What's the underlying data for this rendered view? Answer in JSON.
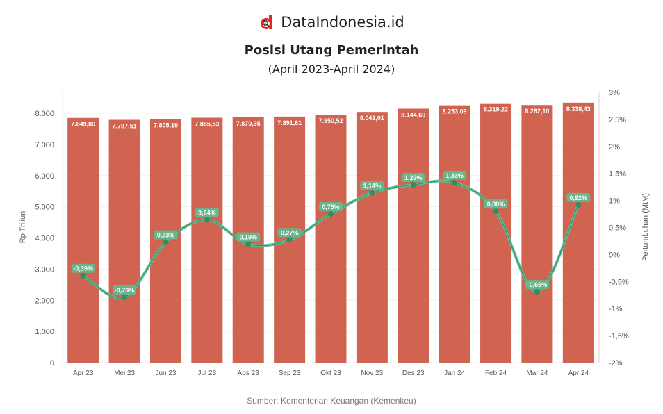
{
  "brand": {
    "name": "DataIndonesia.id",
    "icon": "dataindonesia-logo-icon",
    "color": "#e02b20"
  },
  "title": "Posisi Utang Pemerintah",
  "subtitle": "(April 2023-April 2024)",
  "source": "Sumber: Kementerian Keuangan (Kemenkeu)",
  "colors": {
    "bar": "#d06450",
    "line": "#5bbf96",
    "marker": "#2e8f63"
  },
  "chart_data": {
    "type": "bar",
    "title": "Posisi Utang Pemerintah",
    "subtitle": "(April 2023-April 2024)",
    "categories": [
      "Apr 23",
      "Mei 23",
      "Jun 23",
      "Jul 23",
      "Ags 23",
      "Sep 23",
      "Okt 23",
      "Nov 23",
      "Des 23",
      "Jan 24",
      "Feb 24",
      "Mar 24",
      "Apr 24"
    ],
    "series": [
      {
        "name": "Posisi Utang (Rp Triliun)",
        "type": "bar",
        "axis": "left",
        "values": [
          7849.89,
          7787.51,
          7805.19,
          7855.53,
          7870.35,
          7891.61,
          7950.52,
          8041.01,
          8144.69,
          8253.09,
          8319.22,
          8262.1,
          8338.43
        ]
      },
      {
        "name": "Pertumbuhan (MtM)",
        "type": "line",
        "axis": "right",
        "unit": "%",
        "values": [
          -0.39,
          -0.79,
          0.23,
          0.64,
          0.19,
          0.27,
          0.75,
          1.14,
          1.29,
          1.33,
          0.8,
          -0.69,
          0.92
        ]
      }
    ],
    "ylabel": "Rp Triliun",
    "ylabel_right": "Pertumbuhan (MtM)",
    "ylim": [
      0,
      8000
    ],
    "ylim_right": [
      -2,
      3
    ],
    "yticks": [
      "0",
      "1.000",
      "2.000",
      "3.000",
      "4.000",
      "5.000",
      "6.000",
      "7.000",
      "8.000"
    ],
    "yticks_right": [
      "-2%",
      "-1,5%",
      "-1%",
      "-0,5%",
      "0%",
      "0,5%",
      "1%",
      "1,5%",
      "2%",
      "2,5%",
      "3%"
    ],
    "grid": true,
    "legend": "none"
  }
}
